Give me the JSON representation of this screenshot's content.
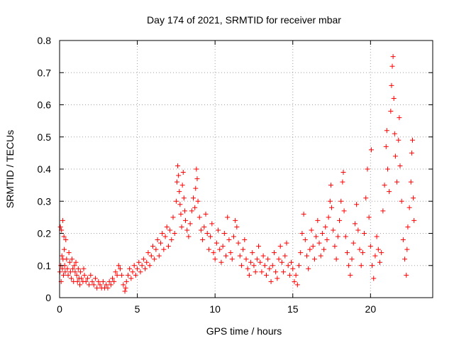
{
  "chart_data": {
    "type": "scatter",
    "title": "Day 174 of 2021, SRMTID for receiver mbar",
    "xlabel": "GPS time / hours",
    "ylabel": "SRMTID / TECUs",
    "xlim": [
      0,
      24
    ],
    "ylim": [
      0,
      0.8
    ],
    "xticks": [
      0,
      5,
      10,
      15,
      20
    ],
    "yticks": [
      0,
      0.1,
      0.2,
      0.3,
      0.4,
      0.5,
      0.6,
      0.7,
      0.8
    ],
    "grid": true,
    "marker": "+",
    "color": "#ff0000",
    "series": [
      {
        "name": "SRMTID",
        "points": [
          [
            0.02,
            0.08
          ],
          [
            0.05,
            0.22
          ],
          [
            0.08,
            0.1
          ],
          [
            0.1,
            0.05
          ],
          [
            0.12,
            0.21
          ],
          [
            0.15,
            0.13
          ],
          [
            0.18,
            0.09
          ],
          [
            0.2,
            0.24
          ],
          [
            0.22,
            0.12
          ],
          [
            0.25,
            0.07
          ],
          [
            0.28,
            0.19
          ],
          [
            0.3,
            0.15
          ],
          [
            0.33,
            0.1
          ],
          [
            0.36,
            0.08
          ],
          [
            0.4,
            0.18
          ],
          [
            0.45,
            0.12
          ],
          [
            0.5,
            0.09
          ],
          [
            0.55,
            0.07
          ],
          [
            0.6,
            0.14
          ],
          [
            0.65,
            0.11
          ],
          [
            0.7,
            0.08
          ],
          [
            0.75,
            0.06
          ],
          [
            0.8,
            0.12
          ],
          [
            0.85,
            0.09
          ],
          [
            0.9,
            0.05
          ],
          [
            0.95,
            0.1
          ],
          [
            1.0,
            0.08
          ],
          [
            1.05,
            0.11
          ],
          [
            1.1,
            0.07
          ],
          [
            1.15,
            0.05
          ],
          [
            1.2,
            0.09
          ],
          [
            1.25,
            0.06
          ],
          [
            1.3,
            0.04
          ],
          [
            1.35,
            0.08
          ],
          [
            1.4,
            0.06
          ],
          [
            1.5,
            0.05
          ],
          [
            1.55,
            0.09
          ],
          [
            1.6,
            0.07
          ],
          [
            1.7,
            0.05
          ],
          [
            1.8,
            0.06
          ],
          [
            1.9,
            0.04
          ],
          [
            2.0,
            0.07
          ],
          [
            2.1,
            0.05
          ],
          [
            2.2,
            0.04
          ],
          [
            2.3,
            0.06
          ],
          [
            2.4,
            0.03
          ],
          [
            2.5,
            0.05
          ],
          [
            2.6,
            0.04
          ],
          [
            2.7,
            0.03
          ],
          [
            2.8,
            0.05
          ],
          [
            2.9,
            0.03
          ],
          [
            3.0,
            0.04
          ],
          [
            3.1,
            0.03
          ],
          [
            3.2,
            0.05
          ],
          [
            3.3,
            0.04
          ],
          [
            3.4,
            0.06
          ],
          [
            3.5,
            0.05
          ],
          [
            3.6,
            0.08
          ],
          [
            3.7,
            0.07
          ],
          [
            3.8,
            0.1
          ],
          [
            3.9,
            0.09
          ],
          [
            4.0,
            0.07
          ],
          [
            4.1,
            0.04
          ],
          [
            4.2,
            0.02
          ],
          [
            4.25,
            0.03
          ],
          [
            4.3,
            0.05
          ],
          [
            4.4,
            0.07
          ],
          [
            4.5,
            0.09
          ],
          [
            4.6,
            0.06
          ],
          [
            4.7,
            0.08
          ],
          [
            4.8,
            0.1
          ],
          [
            4.9,
            0.07
          ],
          [
            5.0,
            0.09
          ],
          [
            5.1,
            0.11
          ],
          [
            5.2,
            0.08
          ],
          [
            5.3,
            0.1
          ],
          [
            5.4,
            0.12
          ],
          [
            5.5,
            0.09
          ],
          [
            5.6,
            0.11
          ],
          [
            5.7,
            0.14
          ],
          [
            5.8,
            0.1
          ],
          [
            5.9,
            0.13
          ],
          [
            6.0,
            0.16
          ],
          [
            6.1,
            0.12
          ],
          [
            6.2,
            0.15
          ],
          [
            6.3,
            0.18
          ],
          [
            6.4,
            0.13
          ],
          [
            6.5,
            0.17
          ],
          [
            6.6,
            0.2
          ],
          [
            6.7,
            0.15
          ],
          [
            6.8,
            0.19
          ],
          [
            6.9,
            0.22
          ],
          [
            7.0,
            0.16
          ],
          [
            7.1,
            0.21
          ],
          [
            7.2,
            0.18
          ],
          [
            7.3,
            0.25
          ],
          [
            7.4,
            0.2
          ],
          [
            7.5,
            0.3
          ],
          [
            7.55,
            0.36
          ],
          [
            7.6,
            0.41
          ],
          [
            7.65,
            0.38
          ],
          [
            7.7,
            0.33
          ],
          [
            7.75,
            0.29
          ],
          [
            7.8,
            0.26
          ],
          [
            7.85,
            0.22
          ],
          [
            7.9,
            0.35
          ],
          [
            7.95,
            0.39
          ],
          [
            8.0,
            0.31
          ],
          [
            8.05,
            0.27
          ],
          [
            8.1,
            0.24
          ],
          [
            8.2,
            0.21
          ],
          [
            8.3,
            0.19
          ],
          [
            8.4,
            0.23
          ],
          [
            8.5,
            0.27
          ],
          [
            8.6,
            0.31
          ],
          [
            8.7,
            0.28
          ],
          [
            8.75,
            0.34
          ],
          [
            8.8,
            0.4
          ],
          [
            8.85,
            0.37
          ],
          [
            8.9,
            0.3
          ],
          [
            9.0,
            0.25
          ],
          [
            9.1,
            0.21
          ],
          [
            9.2,
            0.18
          ],
          [
            9.3,
            0.22
          ],
          [
            9.4,
            0.26
          ],
          [
            9.5,
            0.2
          ],
          [
            9.6,
            0.15
          ],
          [
            9.7,
            0.19
          ],
          [
            9.8,
            0.23
          ],
          [
            9.9,
            0.14
          ],
          [
            10.0,
            0.12
          ],
          [
            10.1,
            0.17
          ],
          [
            10.2,
            0.21
          ],
          [
            10.3,
            0.15
          ],
          [
            10.4,
            0.11
          ],
          [
            10.5,
            0.16
          ],
          [
            10.6,
            0.2
          ],
          [
            10.7,
            0.13
          ],
          [
            10.8,
            0.25
          ],
          [
            10.9,
            0.18
          ],
          [
            11.0,
            0.14
          ],
          [
            11.1,
            0.12
          ],
          [
            11.2,
            0.19
          ],
          [
            11.3,
            0.24
          ],
          [
            11.4,
            0.22
          ],
          [
            11.5,
            0.17
          ],
          [
            11.6,
            0.13
          ],
          [
            11.7,
            0.1
          ],
          [
            11.8,
            0.15
          ],
          [
            11.9,
            0.18
          ],
          [
            12.0,
            0.12
          ],
          [
            12.1,
            0.09
          ],
          [
            12.2,
            0.07
          ],
          [
            12.3,
            0.11
          ],
          [
            12.4,
            0.14
          ],
          [
            12.5,
            0.1
          ],
          [
            12.6,
            0.08
          ],
          [
            12.7,
            0.12
          ],
          [
            12.8,
            0.16
          ],
          [
            12.9,
            0.11
          ],
          [
            13.0,
            0.08
          ],
          [
            13.1,
            0.13
          ],
          [
            13.2,
            0.1
          ],
          [
            13.3,
            0.07
          ],
          [
            13.4,
            0.12
          ],
          [
            13.5,
            0.09
          ],
          [
            13.6,
            0.05
          ],
          [
            13.7,
            0.1
          ],
          [
            13.8,
            0.14
          ],
          [
            13.9,
            0.08
          ],
          [
            14.0,
            0.06
          ],
          [
            14.1,
            0.12
          ],
          [
            14.2,
            0.16
          ],
          [
            14.3,
            0.11
          ],
          [
            14.4,
            0.08
          ],
          [
            14.5,
            0.13
          ],
          [
            14.6,
            0.17
          ],
          [
            14.7,
            0.1
          ],
          [
            14.8,
            0.07
          ],
          [
            14.9,
            0.11
          ],
          [
            15.0,
            0.09
          ],
          [
            15.1,
            0.05
          ],
          [
            15.2,
            0.07
          ],
          [
            15.3,
            0.04
          ],
          [
            15.4,
            0.1
          ],
          [
            15.5,
            0.14
          ],
          [
            15.6,
            0.2
          ],
          [
            15.7,
            0.26
          ],
          [
            15.8,
            0.18
          ],
          [
            15.9,
            0.13
          ],
          [
            16.0,
            0.09
          ],
          [
            16.1,
            0.15
          ],
          [
            16.2,
            0.21
          ],
          [
            16.3,
            0.16
          ],
          [
            16.4,
            0.12
          ],
          [
            16.5,
            0.19
          ],
          [
            16.6,
            0.24
          ],
          [
            16.7,
            0.17
          ],
          [
            16.8,
            0.13
          ],
          [
            16.9,
            0.2
          ],
          [
            17.0,
            0.15
          ],
          [
            17.1,
            0.22
          ],
          [
            17.2,
            0.18
          ],
          [
            17.3,
            0.25
          ],
          [
            17.4,
            0.3
          ],
          [
            17.45,
            0.35
          ],
          [
            17.5,
            0.28
          ],
          [
            17.6,
            0.21
          ],
          [
            17.7,
            0.16
          ],
          [
            17.8,
            0.12
          ],
          [
            17.9,
            0.19
          ],
          [
            18.0,
            0.24
          ],
          [
            18.1,
            0.3
          ],
          [
            18.2,
            0.36
          ],
          [
            18.25,
            0.39
          ],
          [
            18.3,
            0.27
          ],
          [
            18.4,
            0.19
          ],
          [
            18.5,
            0.14
          ],
          [
            18.6,
            0.1
          ],
          [
            18.7,
            0.07
          ],
          [
            18.8,
            0.12
          ],
          [
            18.9,
            0.17
          ],
          [
            19.0,
            0.23
          ],
          [
            19.1,
            0.29
          ],
          [
            19.2,
            0.21
          ],
          [
            19.3,
            0.15
          ],
          [
            19.4,
            0.1
          ],
          [
            19.5,
            0.14
          ],
          [
            19.6,
            0.2
          ],
          [
            19.7,
            0.31
          ],
          [
            19.8,
            0.4
          ],
          [
            19.9,
            0.25
          ],
          [
            20.0,
            0.16
          ],
          [
            20.05,
            0.46
          ],
          [
            20.1,
            0.1
          ],
          [
            20.2,
            0.06
          ],
          [
            20.3,
            0.13
          ],
          [
            20.4,
            0.19
          ],
          [
            20.5,
            0.15
          ],
          [
            20.6,
            0.11
          ],
          [
            20.7,
            0.14
          ],
          [
            20.8,
            0.27
          ],
          [
            20.9,
            0.35
          ],
          [
            21.0,
            0.47
          ],
          [
            21.05,
            0.52
          ],
          [
            21.1,
            0.4
          ],
          [
            21.2,
            0.33
          ],
          [
            21.3,
            0.58
          ],
          [
            21.35,
            0.66
          ],
          [
            21.4,
            0.72
          ],
          [
            21.45,
            0.75
          ],
          [
            21.5,
            0.62
          ],
          [
            21.55,
            0.51
          ],
          [
            21.6,
            0.44
          ],
          [
            21.7,
            0.36
          ],
          [
            21.8,
            0.49
          ],
          [
            21.85,
            0.56
          ],
          [
            21.9,
            0.41
          ],
          [
            22.0,
            0.3
          ],
          [
            22.1,
            0.18
          ],
          [
            22.2,
            0.12
          ],
          [
            22.3,
            0.07
          ],
          [
            22.35,
            0.15
          ],
          [
            22.4,
            0.22
          ],
          [
            22.5,
            0.28
          ],
          [
            22.6,
            0.36
          ],
          [
            22.65,
            0.45
          ],
          [
            22.7,
            0.49
          ],
          [
            22.75,
            0.31
          ],
          [
            22.8,
            0.24
          ]
        ]
      }
    ]
  }
}
